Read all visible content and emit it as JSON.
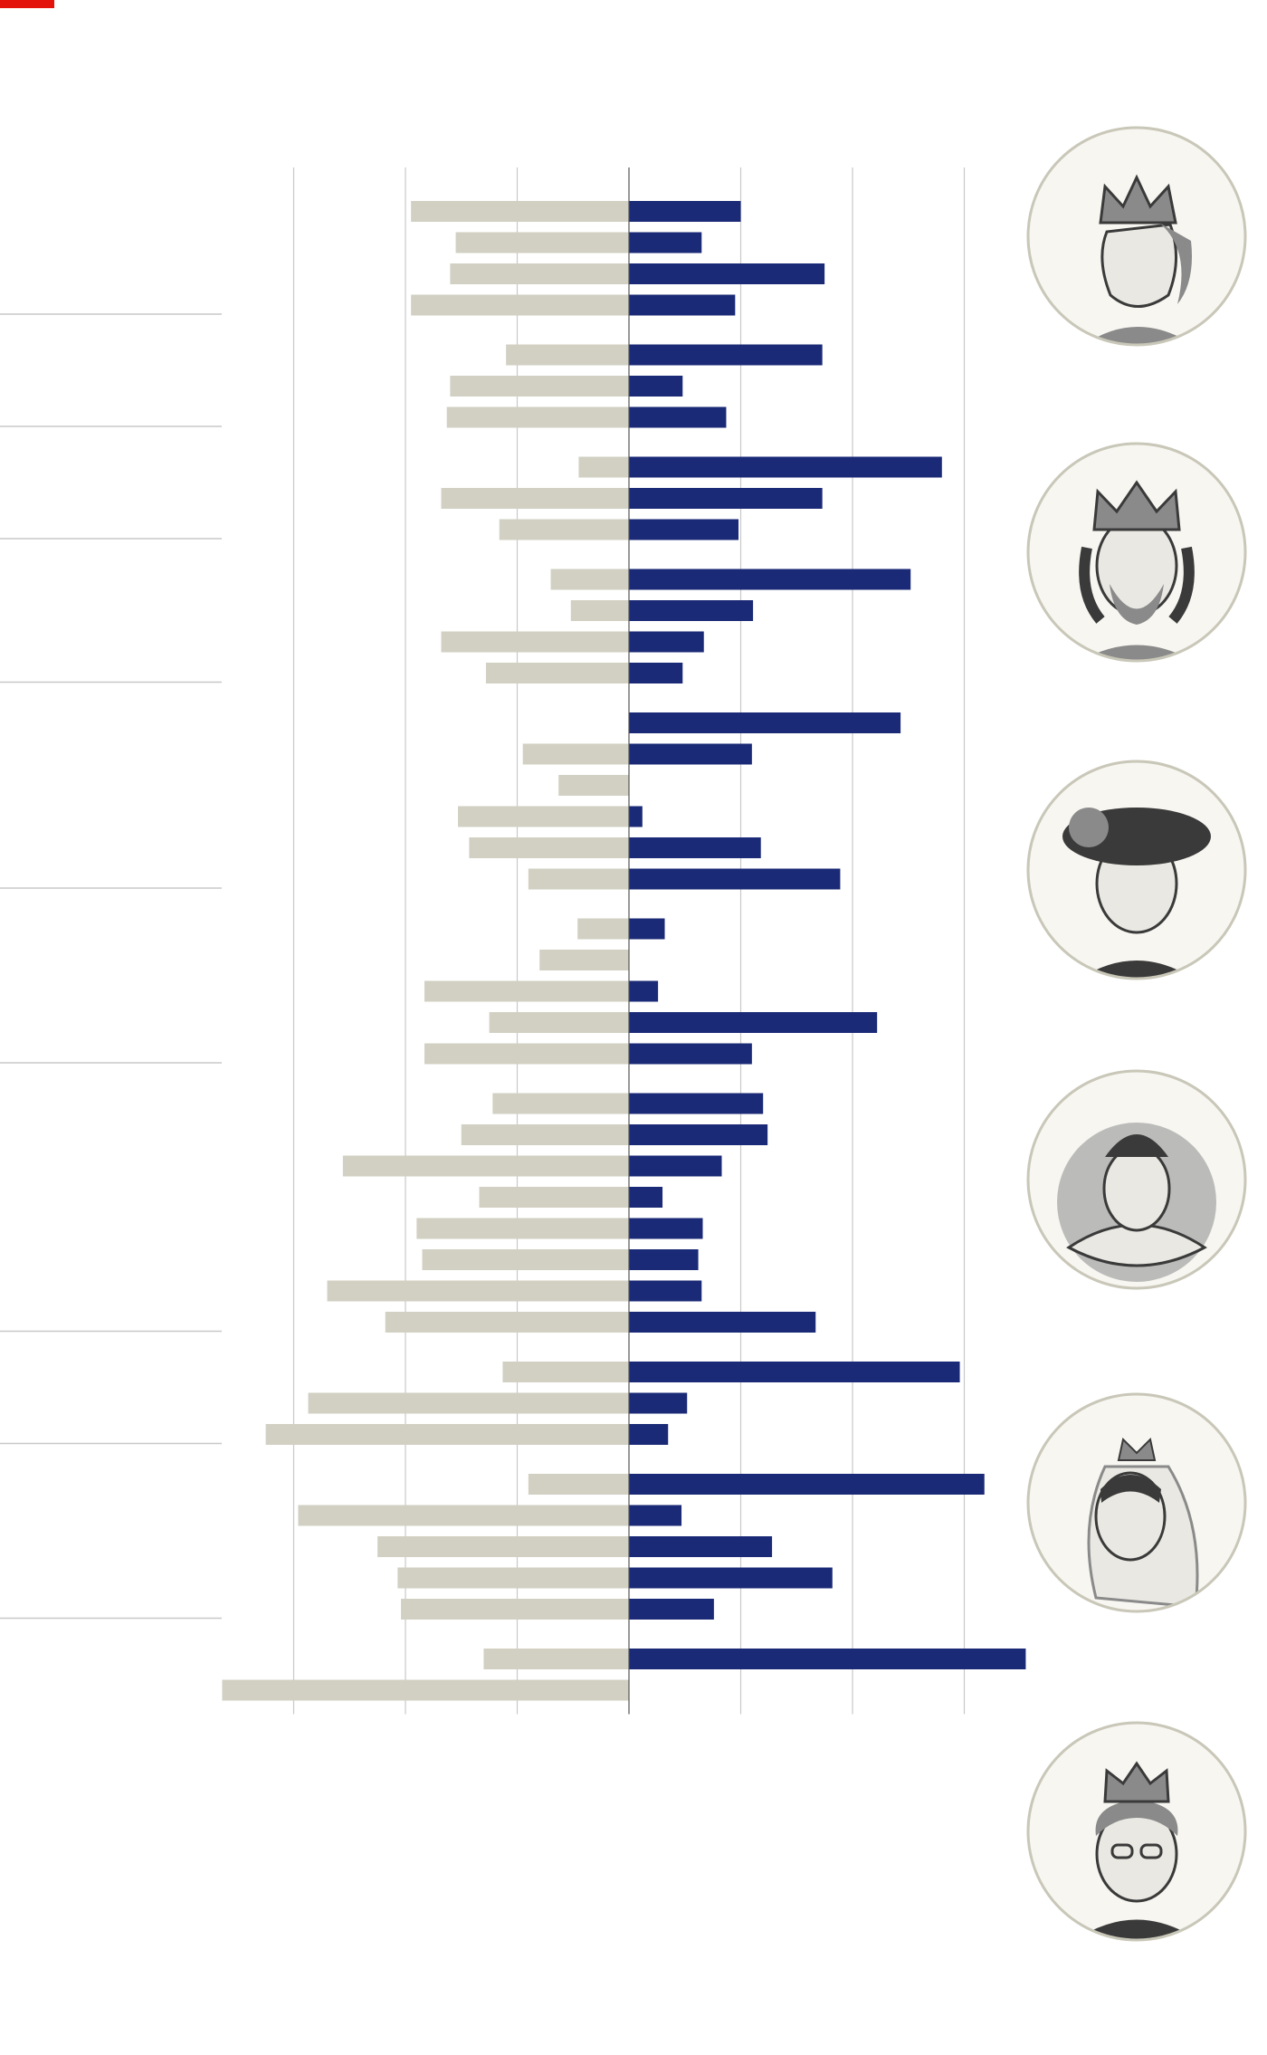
{
  "colors": {
    "accent": "#e3120b",
    "years_before": "#d2d0c3",
    "years_on_throne": "#1b2a76",
    "gridline": "#c8c8c8",
    "divider": "#c8c8c8",
    "center_axis": "#555555",
    "portrait_ring": "#c9c7b8"
  },
  "chart_data": {
    "type": "bar",
    "orientation": "horizontal-diverging",
    "title": "",
    "xlabel": "",
    "ylabel": "",
    "xlim": [
      -36,
      36
    ],
    "grid": true,
    "legend": "none",
    "series": [
      {
        "key": "years_before",
        "direction": "left"
      },
      {
        "key": "years_on_throne",
        "direction": "right"
      }
    ],
    "groups": [
      {
        "reigns": [
          {
            "years_before": 19.5,
            "years_on_throne": 10
          },
          {
            "years_before": 15.5,
            "years_on_throne": 6.5
          },
          {
            "years_before": 16,
            "years_on_throne": 17.5
          },
          {
            "years_before": 19.5,
            "years_on_throne": 9.5
          }
        ]
      },
      {
        "reigns": [
          {
            "years_before": 11,
            "years_on_throne": 17.3
          },
          {
            "years_before": 16,
            "years_on_throne": 4.8
          },
          {
            "years_before": 16.3,
            "years_on_throne": 8.7
          }
        ]
      },
      {
        "reigns": [
          {
            "years_before": 4.5,
            "years_on_throne": 28
          },
          {
            "years_before": 16.8,
            "years_on_throne": 17.3
          },
          {
            "years_before": 11.6,
            "years_on_throne": 9.8
          }
        ]
      },
      {
        "reigns": [
          {
            "years_before": 7,
            "years_on_throne": 25.2
          },
          {
            "years_before": 5.2,
            "years_on_throne": 11.1
          },
          {
            "years_before": 16.8,
            "years_on_throne": 6.7
          },
          {
            "years_before": 12.8,
            "years_on_throne": 4.8
          }
        ]
      },
      {
        "reigns": [
          {
            "years_before": 0,
            "years_on_throne": 24.3
          },
          {
            "years_before": 9.5,
            "years_on_throne": 11
          },
          {
            "years_before": 6.3,
            "years_on_throne": 0
          },
          {
            "years_before": 15.3,
            "years_on_throne": 1.2
          },
          {
            "years_before": 14.3,
            "years_on_throne": 11.8
          },
          {
            "years_before": 9,
            "years_on_throne": 18.9
          }
        ]
      },
      {
        "reigns": [
          {
            "years_before": 4.6,
            "years_on_throne": 3.2
          },
          {
            "years_before": 8,
            "years_on_throne": 0
          },
          {
            "years_before": 18.3,
            "years_on_throne": 2.6
          },
          {
            "years_before": 12.5,
            "years_on_throne": 22.2
          },
          {
            "years_before": 18.3,
            "years_on_throne": 11
          }
        ]
      },
      {
        "reigns": [
          {
            "years_before": 12.2,
            "years_on_throne": 12
          },
          {
            "years_before": 15,
            "years_on_throne": 12.4
          },
          {
            "years_before": 25.6,
            "years_on_throne": 8.3
          },
          {
            "years_before": 13.4,
            "years_on_throne": 3
          },
          {
            "years_before": 19,
            "years_on_throne": 6.6
          },
          {
            "years_before": 18.5,
            "years_on_throne": 6.2
          },
          {
            "years_before": 27,
            "years_on_throne": 6.5
          },
          {
            "years_before": 21.8,
            "years_on_throne": 16.7
          }
        ]
      },
      {
        "reigns": [
          {
            "years_before": 11.3,
            "years_on_throne": 29.6
          },
          {
            "years_before": 28.7,
            "years_on_throne": 5.2
          },
          {
            "years_before": 32.5,
            "years_on_throne": 3.5
          }
        ]
      },
      {
        "reigns": [
          {
            "years_before": 9,
            "years_on_throne": 31.8
          },
          {
            "years_before": 29.6,
            "years_on_throne": 4.7
          },
          {
            "years_before": 22.5,
            "years_on_throne": 12.8
          },
          {
            "years_before": 20.7,
            "years_on_throne": 18.2
          },
          {
            "years_before": 20.4,
            "years_on_throne": 7.6
          }
        ]
      },
      {
        "reigns": [
          {
            "years_before": 13,
            "years_on_throne": 35.5
          },
          {
            "years_before": 36.4,
            "years_on_throne": 0
          }
        ]
      }
    ]
  },
  "portraits": [
    {
      "name": "king-crown-profile-portrait",
      "icon": "king-profile"
    },
    {
      "name": "king-crown-front-portrait",
      "icon": "king-front"
    },
    {
      "name": "king-feathered-hat-portrait",
      "icon": "king-hat"
    },
    {
      "name": "queen-ruff-portrait",
      "icon": "queen-ruff"
    },
    {
      "name": "queen-veil-crown-portrait",
      "icon": "queen-veil"
    },
    {
      "name": "queen-crown-glasses-portrait",
      "icon": "queen-modern"
    }
  ]
}
